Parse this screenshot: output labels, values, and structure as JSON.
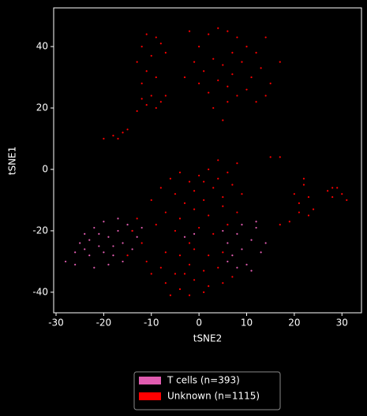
{
  "chart_data": {
    "type": "scatter",
    "xlabel": "tSNE2",
    "ylabel": "tSNE1",
    "xlim": [
      -30.5,
      34.1
    ],
    "ylim": [
      -46.7,
      52.6
    ],
    "xticks": [
      -30,
      -20,
      -10,
      0,
      10,
      20,
      30
    ],
    "yticks": [
      -40,
      -20,
      0,
      20,
      40
    ],
    "legend": "bottom",
    "series": [
      {
        "name": "T cells (n=393)",
        "color": "#e05cb0",
        "x": [
          -28,
          -26,
          -25,
          -24,
          -23,
          -22,
          -21,
          -20,
          -19,
          -18,
          -17,
          -16,
          -15,
          -14,
          -13,
          -22,
          -19,
          -16,
          -24,
          -20,
          -18,
          -21,
          -17,
          -14,
          -12,
          -26,
          -23,
          -3,
          -1,
          5,
          6,
          7,
          8,
          9,
          10,
          11,
          12,
          13,
          14,
          11,
          9,
          12,
          6,
          8
        ],
        "values": [
          -30,
          -27,
          -24,
          -21,
          -28,
          -19,
          -25,
          -17,
          -22,
          -28,
          -20,
          -24,
          -18,
          -26,
          -22,
          -32,
          -31,
          -30,
          -26,
          -27,
          -25,
          -21,
          -16,
          -20,
          -19,
          -31,
          -23,
          -22,
          -21,
          -20,
          -24,
          -28,
          -21,
          -26,
          -31,
          -23,
          -19,
          -27,
          -24,
          -33,
          -18,
          -17,
          -30,
          -32
        ]
      },
      {
        "name": "Unknown (n=1115)",
        "color": "#ff0000",
        "x": [
          -11,
          -9,
          -12,
          -8,
          -10,
          -13,
          -7,
          -11,
          -9,
          -12,
          -10,
          -8,
          -12,
          -9,
          -11,
          -7,
          -13,
          -2,
          0,
          2,
          4,
          6,
          8,
          10,
          12,
          14,
          -1,
          1,
          3,
          5,
          7,
          9,
          11,
          13,
          15,
          17,
          0,
          2,
          4,
          6,
          8,
          10,
          12,
          14,
          3,
          6,
          5,
          -3,
          7,
          -20,
          -18,
          -16,
          -17,
          -15,
          15,
          17,
          -10,
          -8,
          -6,
          -4,
          -2,
          0,
          2,
          4,
          6,
          8,
          -5,
          -3,
          -1,
          1,
          3,
          5,
          7,
          9,
          -7,
          -4,
          -1,
          2,
          5,
          8,
          -9,
          -5,
          0,
          3,
          -2,
          6,
          4,
          1,
          -7,
          -4,
          -1,
          2,
          5,
          -8,
          -5,
          -2,
          1,
          4,
          7,
          -7,
          -4,
          -1,
          2,
          5,
          -6,
          -2,
          1,
          -3,
          -14,
          -12,
          -15,
          -11,
          -13,
          -10,
          20,
          21,
          22,
          23,
          24,
          21,
          22,
          23,
          27,
          28,
          29,
          30,
          31,
          28,
          17,
          19
        ],
        "values": [
          44,
          43,
          40,
          41,
          37,
          35,
          38,
          32,
          30,
          28,
          24,
          22,
          23,
          20,
          21,
          24,
          19,
          45,
          40,
          44,
          46,
          45,
          43,
          40,
          38,
          43,
          35,
          32,
          36,
          34,
          31,
          35,
          30,
          33,
          28,
          35,
          28,
          25,
          29,
          27,
          24,
          26,
          22,
          24,
          20,
          22,
          16,
          30,
          38,
          10,
          11,
          12,
          10,
          13,
          4,
          4,
          -10,
          -6,
          -3,
          -1,
          -4,
          -2,
          0,
          -3,
          -1,
          2,
          -8,
          -11,
          -7,
          -10,
          -6,
          -9,
          -5,
          -8,
          -14,
          -16,
          -13,
          -15,
          -12,
          -14,
          -18,
          -20,
          -19,
          -21,
          -24,
          -18,
          3,
          -4,
          -27,
          -28,
          -26,
          -28,
          -27,
          -32,
          -34,
          -31,
          -33,
          -32,
          -35,
          -37,
          -39,
          -36,
          -38,
          -37,
          -41,
          -41,
          -40,
          -34,
          -20,
          -24,
          -28,
          -30,
          -16,
          -34,
          -8,
          -11,
          -5,
          -9,
          -13,
          -14,
          -3,
          -15,
          -7,
          -9,
          -6,
          -8,
          -10,
          -6,
          -18,
          -17
        ]
      }
    ]
  }
}
